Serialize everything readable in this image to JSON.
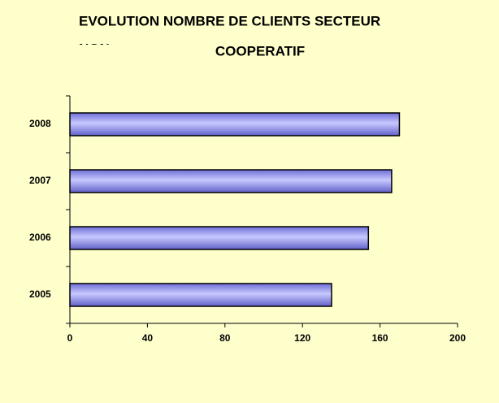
{
  "chart_data": {
    "type": "hbar",
    "title": [
      "EVOLUTION NOMBRE DE CLIENTS SECTEUR",
      "NON",
      "COOPERATIF"
    ],
    "categories": [
      "2005",
      "2006",
      "2007",
      "2008"
    ],
    "values": [
      135,
      154,
      166,
      170
    ],
    "color": "#9999ff",
    "xlim": [
      0,
      200
    ],
    "xticks": [
      0,
      40,
      80,
      120,
      160,
      200
    ],
    "grid": false
  }
}
